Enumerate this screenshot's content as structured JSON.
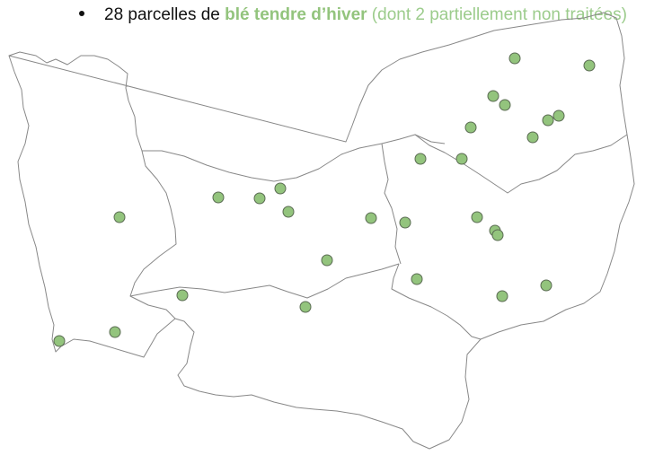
{
  "caption": {
    "count_text": "28 parcelles de ",
    "crop_label": "blé tendre d’hiver",
    "note": " (dont 2 partiellement non traitées)"
  },
  "colors": {
    "crop": "#93c47d",
    "note": "#9ccc8c",
    "border": "#888888"
  },
  "map": {
    "region": "Normandie",
    "marker_count": 28
  }
}
